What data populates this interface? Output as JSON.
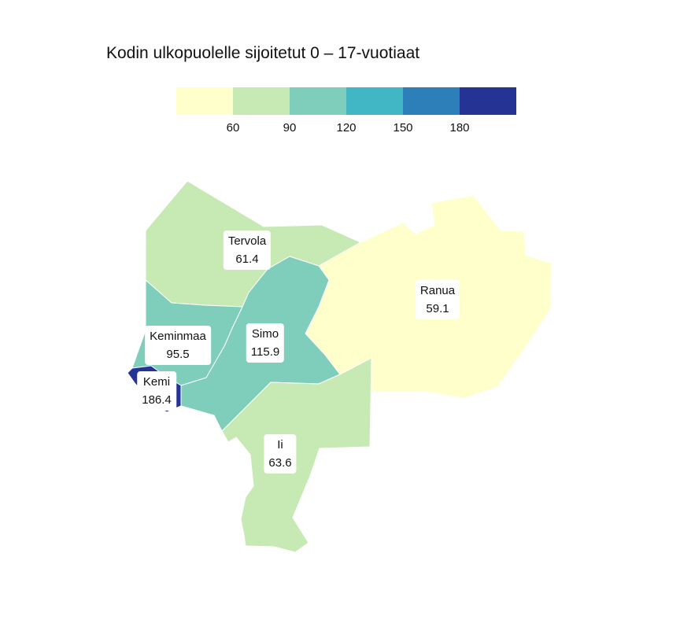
{
  "title": "Kodin ulkopuolelle sijoitetut 0 – 17-vuotiaat",
  "legend": {
    "colors": [
      "#ffffcc",
      "#c7e9b4",
      "#7fcdbb",
      "#41b6c4",
      "#2c7fb8",
      "#253494"
    ],
    "ticks": [
      "60",
      "90",
      "120",
      "150",
      "180"
    ]
  },
  "regions": [
    {
      "name": "Tervola",
      "value": "61.4",
      "color": "#c7e9b4"
    },
    {
      "name": "Ranua",
      "value": "59.1",
      "color": "#ffffcc"
    },
    {
      "name": "Keminmaa",
      "value": "95.5",
      "color": "#7fcdbb"
    },
    {
      "name": "Simo",
      "value": "115.9",
      "color": "#7fcdbb"
    },
    {
      "name": "Kemi",
      "value": "186.4",
      "color": "#253494"
    },
    {
      "name": "Ii",
      "value": "63.6",
      "color": "#c7e9b4"
    }
  ]
}
